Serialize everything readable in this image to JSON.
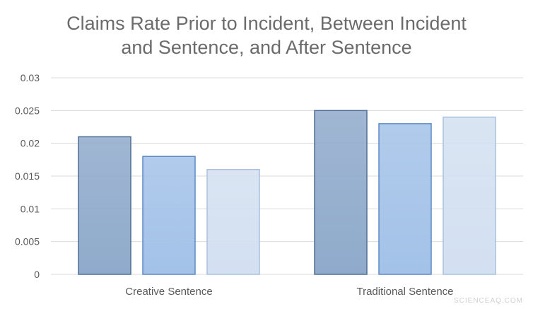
{
  "chart_data": {
    "type": "bar",
    "title_lines": [
      "Claims Rate Prior to Incident, Between Incident",
      "and Sentence, and After Sentence"
    ],
    "categories": [
      "Creative Sentence",
      "Traditional Sentence"
    ],
    "series": [
      {
        "values": [
          0.021,
          0.025
        ],
        "color": "#8faacb",
        "edge": "#4f6f95"
      },
      {
        "values": [
          0.018,
          0.023
        ],
        "color": "#a3c2e8",
        "edge": "#5b8bc4"
      },
      {
        "values": [
          0.016,
          0.024
        ],
        "color": "#d3e0f1",
        "edge": "#a9c0de"
      }
    ],
    "yticks": [
      "0",
      "0.005",
      "0.01",
      "0.015",
      "0.02",
      "0.025",
      "0.03"
    ],
    "ylim": [
      0,
      0.03
    ],
    "grid": true,
    "legend": "none",
    "xlabel": "",
    "ylabel": ""
  },
  "watermark": "SCIENCEAQ.COM"
}
